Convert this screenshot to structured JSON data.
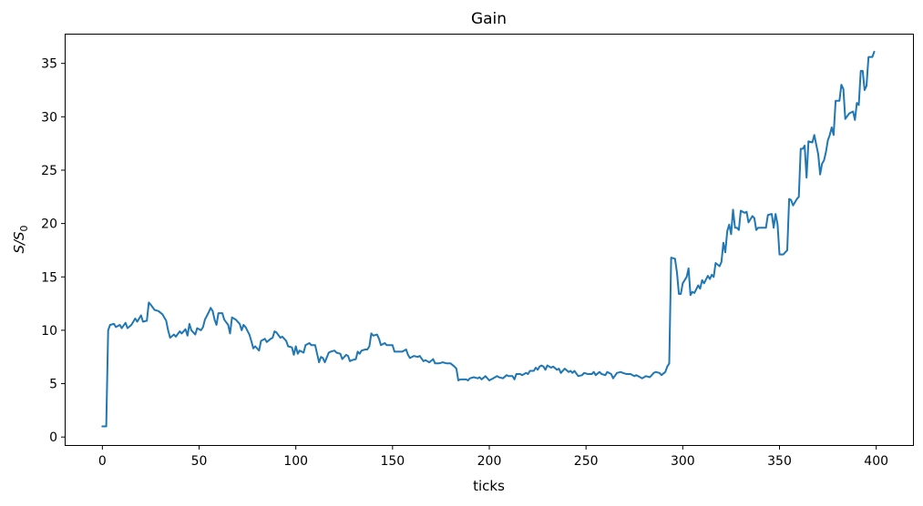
{
  "chart_data": {
    "type": "line",
    "title": "Gain",
    "xlabel": "ticks",
    "ylabel": "S/S",
    "ylabel_subscript": "0",
    "xlim": [
      -19,
      419
    ],
    "ylim": [
      -0.75,
      37.7
    ],
    "xticks": [
      0,
      50,
      100,
      150,
      200,
      250,
      300,
      350,
      400
    ],
    "yticks": [
      0,
      5,
      10,
      15,
      20,
      25,
      30,
      35
    ],
    "grid": false,
    "color": "#1f77b4",
    "points": [
      [
        0,
        1.0
      ],
      [
        2,
        1.0
      ],
      [
        3,
        10.0
      ],
      [
        4,
        10.5
      ],
      [
        6,
        10.6
      ],
      [
        7,
        10.3
      ],
      [
        9,
        10.5
      ],
      [
        10,
        10.2
      ],
      [
        12,
        10.7
      ],
      [
        13,
        10.2
      ],
      [
        15,
        10.5
      ],
      [
        17,
        11.1
      ],
      [
        18,
        10.8
      ],
      [
        20,
        11.4
      ],
      [
        21,
        10.8
      ],
      [
        23,
        10.9
      ],
      [
        24,
        12.6
      ],
      [
        25,
        12.4
      ],
      [
        27,
        11.9
      ],
      [
        29,
        11.8
      ],
      [
        31,
        11.5
      ],
      [
        33,
        10.9
      ],
      [
        34,
        10.0
      ],
      [
        35,
        9.3
      ],
      [
        37,
        9.6
      ],
      [
        38,
        9.4
      ],
      [
        40,
        9.9
      ],
      [
        41,
        9.7
      ],
      [
        43,
        10.1
      ],
      [
        44,
        9.5
      ],
      [
        45,
        10.6
      ],
      [
        46,
        10.0
      ],
      [
        48,
        9.6
      ],
      [
        49,
        10.2
      ],
      [
        51,
        10.0
      ],
      [
        52,
        10.3
      ],
      [
        53,
        11.0
      ],
      [
        55,
        11.7
      ],
      [
        56,
        12.1
      ],
      [
        57,
        11.8
      ],
      [
        58,
        11.0
      ],
      [
        59,
        10.5
      ],
      [
        60,
        11.6
      ],
      [
        62,
        11.6
      ],
      [
        63,
        11.0
      ],
      [
        65,
        10.5
      ],
      [
        66,
        9.7
      ],
      [
        67,
        11.2
      ],
      [
        69,
        11.0
      ],
      [
        71,
        10.6
      ],
      [
        72,
        10.0
      ],
      [
        73,
        10.5
      ],
      [
        74,
        10.3
      ],
      [
        76,
        9.6
      ],
      [
        77,
        9.0
      ],
      [
        78,
        8.3
      ],
      [
        79,
        8.5
      ],
      [
        81,
        8.1
      ],
      [
        82,
        9.0
      ],
      [
        84,
        9.2
      ],
      [
        85,
        8.9
      ],
      [
        87,
        9.2
      ],
      [
        88,
        9.3
      ],
      [
        89,
        9.9
      ],
      [
        90,
        9.8
      ],
      [
        92,
        9.3
      ],
      [
        93,
        9.4
      ],
      [
        95,
        9.0
      ],
      [
        96,
        8.5
      ],
      [
        98,
        8.4
      ],
      [
        99,
        7.7
      ],
      [
        100,
        8.5
      ],
      [
        101,
        7.8
      ],
      [
        102,
        8.1
      ],
      [
        104,
        7.9
      ],
      [
        105,
        8.6
      ],
      [
        107,
        8.8
      ],
      [
        108,
        8.6
      ],
      [
        110,
        8.6
      ],
      [
        111,
        7.8
      ],
      [
        112,
        7.0
      ],
      [
        113,
        7.5
      ],
      [
        114,
        7.4
      ],
      [
        115,
        7.0
      ],
      [
        117,
        7.9
      ],
      [
        118,
        8.0
      ],
      [
        120,
        8.1
      ],
      [
        121,
        7.9
      ],
      [
        123,
        7.8
      ],
      [
        124,
        7.3
      ],
      [
        126,
        7.7
      ],
      [
        127,
        7.6
      ],
      [
        128,
        7.1
      ],
      [
        129,
        7.2
      ],
      [
        131,
        7.3
      ],
      [
        132,
        8.0
      ],
      [
        133,
        7.8
      ],
      [
        134,
        8.1
      ],
      [
        136,
        8.2
      ],
      [
        137,
        8.2
      ],
      [
        138,
        8.5
      ],
      [
        139,
        9.7
      ],
      [
        140,
        9.5
      ],
      [
        142,
        9.6
      ],
      [
        143,
        9.2
      ],
      [
        144,
        8.6
      ],
      [
        146,
        8.8
      ],
      [
        147,
        8.6
      ],
      [
        149,
        8.6
      ],
      [
        150,
        8.6
      ],
      [
        151,
        8.0
      ],
      [
        153,
        8.0
      ],
      [
        155,
        8.0
      ],
      [
        157,
        8.2
      ],
      [
        158,
        7.7
      ],
      [
        159,
        7.4
      ],
      [
        161,
        7.6
      ],
      [
        163,
        7.5
      ],
      [
        164,
        7.6
      ],
      [
        166,
        7.1
      ],
      [
        167,
        7.2
      ],
      [
        169,
        7.0
      ],
      [
        171,
        7.3
      ],
      [
        172,
        6.9
      ],
      [
        174,
        6.9
      ],
      [
        176,
        7.0
      ],
      [
        178,
        6.9
      ],
      [
        180,
        6.9
      ],
      [
        182,
        6.6
      ],
      [
        183,
        6.4
      ],
      [
        184,
        5.3
      ],
      [
        185,
        5.4
      ],
      [
        186,
        5.4
      ],
      [
        188,
        5.4
      ],
      [
        189,
        5.3
      ],
      [
        190,
        5.5
      ],
      [
        192,
        5.6
      ],
      [
        194,
        5.5
      ],
      [
        195,
        5.6
      ],
      [
        196,
        5.4
      ],
      [
        198,
        5.7
      ],
      [
        200,
        5.3
      ],
      [
        202,
        5.5
      ],
      [
        204,
        5.7
      ],
      [
        205,
        5.6
      ],
      [
        207,
        5.5
      ],
      [
        209,
        5.8
      ],
      [
        210,
        5.7
      ],
      [
        212,
        5.7
      ],
      [
        213,
        5.4
      ],
      [
        214,
        5.9
      ],
      [
        216,
        5.9
      ],
      [
        217,
        5.8
      ],
      [
        219,
        6.0
      ],
      [
        220,
        5.9
      ],
      [
        221,
        6.2
      ],
      [
        223,
        6.2
      ],
      [
        224,
        6.5
      ],
      [
        225,
        6.3
      ],
      [
        226,
        6.6
      ],
      [
        227,
        6.7
      ],
      [
        228,
        6.6
      ],
      [
        229,
        6.3
      ],
      [
        230,
        6.7
      ],
      [
        232,
        6.5
      ],
      [
        233,
        6.6
      ],
      [
        235,
        6.3
      ],
      [
        236,
        6.4
      ],
      [
        237,
        6.0
      ],
      [
        239,
        6.4
      ],
      [
        241,
        6.1
      ],
      [
        242,
        6.2
      ],
      [
        243,
        6.0
      ],
      [
        244,
        6.2
      ],
      [
        246,
        5.7
      ],
      [
        248,
        5.8
      ],
      [
        249,
        6.0
      ],
      [
        251,
        5.9
      ],
      [
        253,
        5.9
      ],
      [
        254,
        6.1
      ],
      [
        255,
        5.8
      ],
      [
        257,
        6.1
      ],
      [
        258,
        5.9
      ],
      [
        260,
        5.8
      ],
      [
        261,
        6.1
      ],
      [
        263,
        5.9
      ],
      [
        264,
        5.5
      ],
      [
        266,
        6.0
      ],
      [
        268,
        6.1
      ],
      [
        269,
        6.0
      ],
      [
        271,
        5.9
      ],
      [
        273,
        5.9
      ],
      [
        275,
        5.7
      ],
      [
        276,
        5.8
      ],
      [
        278,
        5.6
      ],
      [
        279,
        5.5
      ],
      [
        281,
        5.7
      ],
      [
        283,
        5.6
      ],
      [
        285,
        6.0
      ],
      [
        286,
        6.1
      ],
      [
        288,
        6.0
      ],
      [
        289,
        5.8
      ],
      [
        291,
        6.1
      ],
      [
        292,
        6.6
      ],
      [
        293,
        6.9
      ],
      [
        294,
        16.8
      ],
      [
        296,
        16.7
      ],
      [
        297,
        15.4
      ],
      [
        298,
        13.4
      ],
      [
        299,
        13.4
      ],
      [
        300,
        14.4
      ],
      [
        302,
        15.0
      ],
      [
        303,
        15.8
      ],
      [
        304,
        13.3
      ],
      [
        305,
        13.6
      ],
      [
        306,
        13.5
      ],
      [
        308,
        14.2
      ],
      [
        309,
        13.9
      ],
      [
        310,
        14.7
      ],
      [
        311,
        14.4
      ],
      [
        313,
        15.1
      ],
      [
        314,
        14.8
      ],
      [
        315,
        15.2
      ],
      [
        316,
        15.0
      ],
      [
        317,
        16.3
      ],
      [
        319,
        16.0
      ],
      [
        320,
        16.4
      ],
      [
        321,
        18.2
      ],
      [
        322,
        17.3
      ],
      [
        323,
        19.3
      ],
      [
        324,
        19.9
      ],
      [
        325,
        19.0
      ],
      [
        326,
        21.3
      ],
      [
        327,
        19.6
      ],
      [
        328,
        19.6
      ],
      [
        329,
        19.4
      ],
      [
        330,
        21.2
      ],
      [
        332,
        21.0
      ],
      [
        333,
        21.1
      ],
      [
        334,
        20.1
      ],
      [
        336,
        20.7
      ],
      [
        337,
        20.5
      ],
      [
        338,
        19.4
      ],
      [
        339,
        19.6
      ],
      [
        341,
        19.6
      ],
      [
        343,
        19.6
      ],
      [
        344,
        20.8
      ],
      [
        346,
        20.9
      ],
      [
        347,
        19.6
      ],
      [
        348,
        20.9
      ],
      [
        349,
        19.9
      ],
      [
        350,
        17.1
      ],
      [
        352,
        17.1
      ],
      [
        354,
        17.5
      ],
      [
        355,
        22.3
      ],
      [
        356,
        22.2
      ],
      [
        357,
        21.7
      ],
      [
        359,
        22.3
      ],
      [
        360,
        22.5
      ],
      [
        361,
        27.0
      ],
      [
        362,
        27.0
      ],
      [
        363,
        27.3
      ],
      [
        364,
        24.3
      ],
      [
        365,
        27.7
      ],
      [
        367,
        27.6
      ],
      [
        368,
        28.3
      ],
      [
        369,
        27.4
      ],
      [
        370,
        26.5
      ],
      [
        371,
        24.6
      ],
      [
        372,
        25.6
      ],
      [
        373,
        25.9
      ],
      [
        374,
        26.7
      ],
      [
        375,
        27.8
      ],
      [
        376,
        28.3
      ],
      [
        377,
        29.0
      ],
      [
        378,
        28.3
      ],
      [
        379,
        31.5
      ],
      [
        381,
        31.5
      ],
      [
        382,
        33.0
      ],
      [
        383,
        32.6
      ],
      [
        384,
        29.8
      ],
      [
        386,
        30.3
      ],
      [
        388,
        30.5
      ],
      [
        389,
        29.7
      ],
      [
        390,
        31.3
      ],
      [
        391,
        31.1
      ],
      [
        392,
        34.3
      ],
      [
        393,
        34.3
      ],
      [
        394,
        32.5
      ],
      [
        395,
        32.9
      ],
      [
        396,
        35.6
      ],
      [
        398,
        35.6
      ],
      [
        399,
        36.1
      ]
    ]
  }
}
